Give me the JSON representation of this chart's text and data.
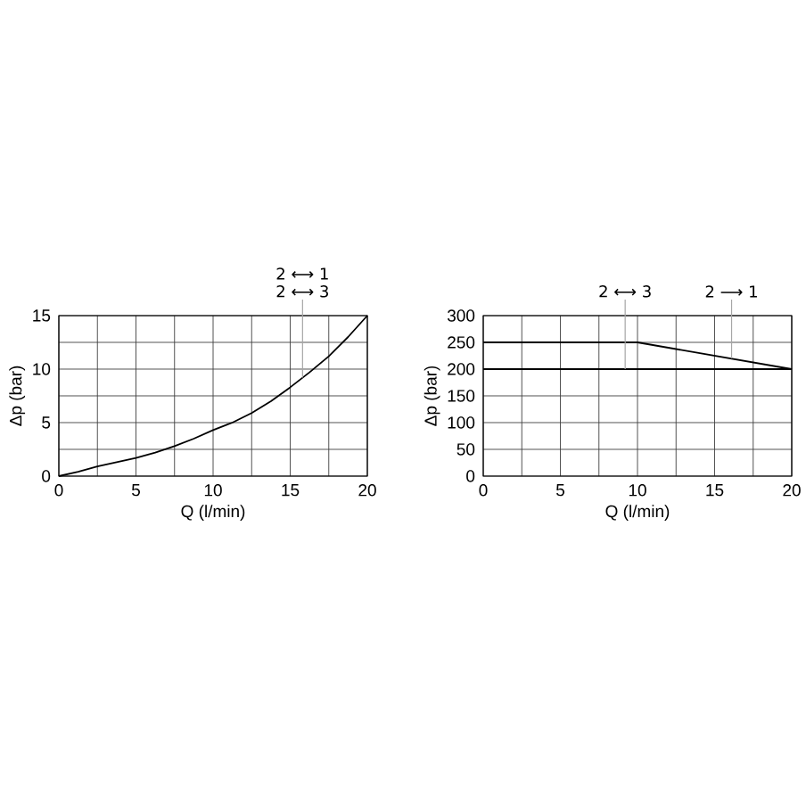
{
  "chart_data": [
    {
      "type": "line",
      "xlabel": "Q (l/min)",
      "ylabel": "Δp (bar)",
      "x": [
        0,
        1.25,
        2.5,
        3.75,
        5,
        6.25,
        7.5,
        8.75,
        10,
        11.25,
        12.5,
        13.75,
        15,
        16.25,
        17.5,
        18.75,
        20
      ],
      "series": [
        {
          "color": "#000000",
          "values": [
            0,
            0.4,
            0.9,
            1.3,
            1.7,
            2.2,
            2.8,
            3.5,
            4.3,
            5.0,
            5.9,
            7.0,
            8.3,
            9.7,
            11.2,
            13.0,
            15
          ]
        }
      ],
      "xlim": [
        0,
        20
      ],
      "ylim": [
        0,
        15
      ],
      "xticks": [
        0,
        {
          "value": 2.5,
          "label": null
        },
        5,
        {
          "value": 7.5,
          "label": null
        },
        10,
        {
          "value": 12.5,
          "label": null
        },
        15,
        {
          "value": 17.5,
          "label": null
        },
        20
      ],
      "yticks": [
        0,
        {
          "value": 2.5,
          "label": null
        },
        5,
        {
          "value": 7.5,
          "label": null
        },
        10,
        {
          "value": 12.5,
          "label": null
        },
        15
      ],
      "grid": true,
      "marker": "none",
      "annotations": [
        {
          "text": "2 ⟷ 1",
          "x": 15.8,
          "y": 9.2
        },
        {
          "text": "2 ⟷ 3",
          "x": 15.8,
          "y": 9.2
        }
      ]
    },
    {
      "type": "line",
      "xlabel": "Q (l/min)",
      "ylabel": "Δp (bar)",
      "series": [
        {
          "color": "#000000",
          "x": [
            0,
            20
          ],
          "values": [
            200,
            200
          ]
        },
        {
          "color": "#000000",
          "x": [
            0,
            10,
            20
          ],
          "values": [
            250,
            250,
            200
          ]
        }
      ],
      "xlim": [
        0,
        20
      ],
      "ylim": [
        0,
        300
      ],
      "xticks": [
        0,
        {
          "value": 2.5,
          "label": null
        },
        5,
        {
          "value": 7.5,
          "label": null
        },
        10,
        {
          "value": 12.5,
          "label": null
        },
        15,
        {
          "value": 17.5,
          "label": null
        },
        20
      ],
      "yticks": [
        0,
        50,
        100,
        150,
        200,
        250,
        300
      ],
      "grid": true,
      "marker": "none",
      "annotations": [
        {
          "text": "2 ⟷ 3",
          "x": 9.2,
          "y": 200
        },
        {
          "text": "2 ⟶ 1",
          "x": 16.1,
          "y": 220
        }
      ]
    }
  ]
}
